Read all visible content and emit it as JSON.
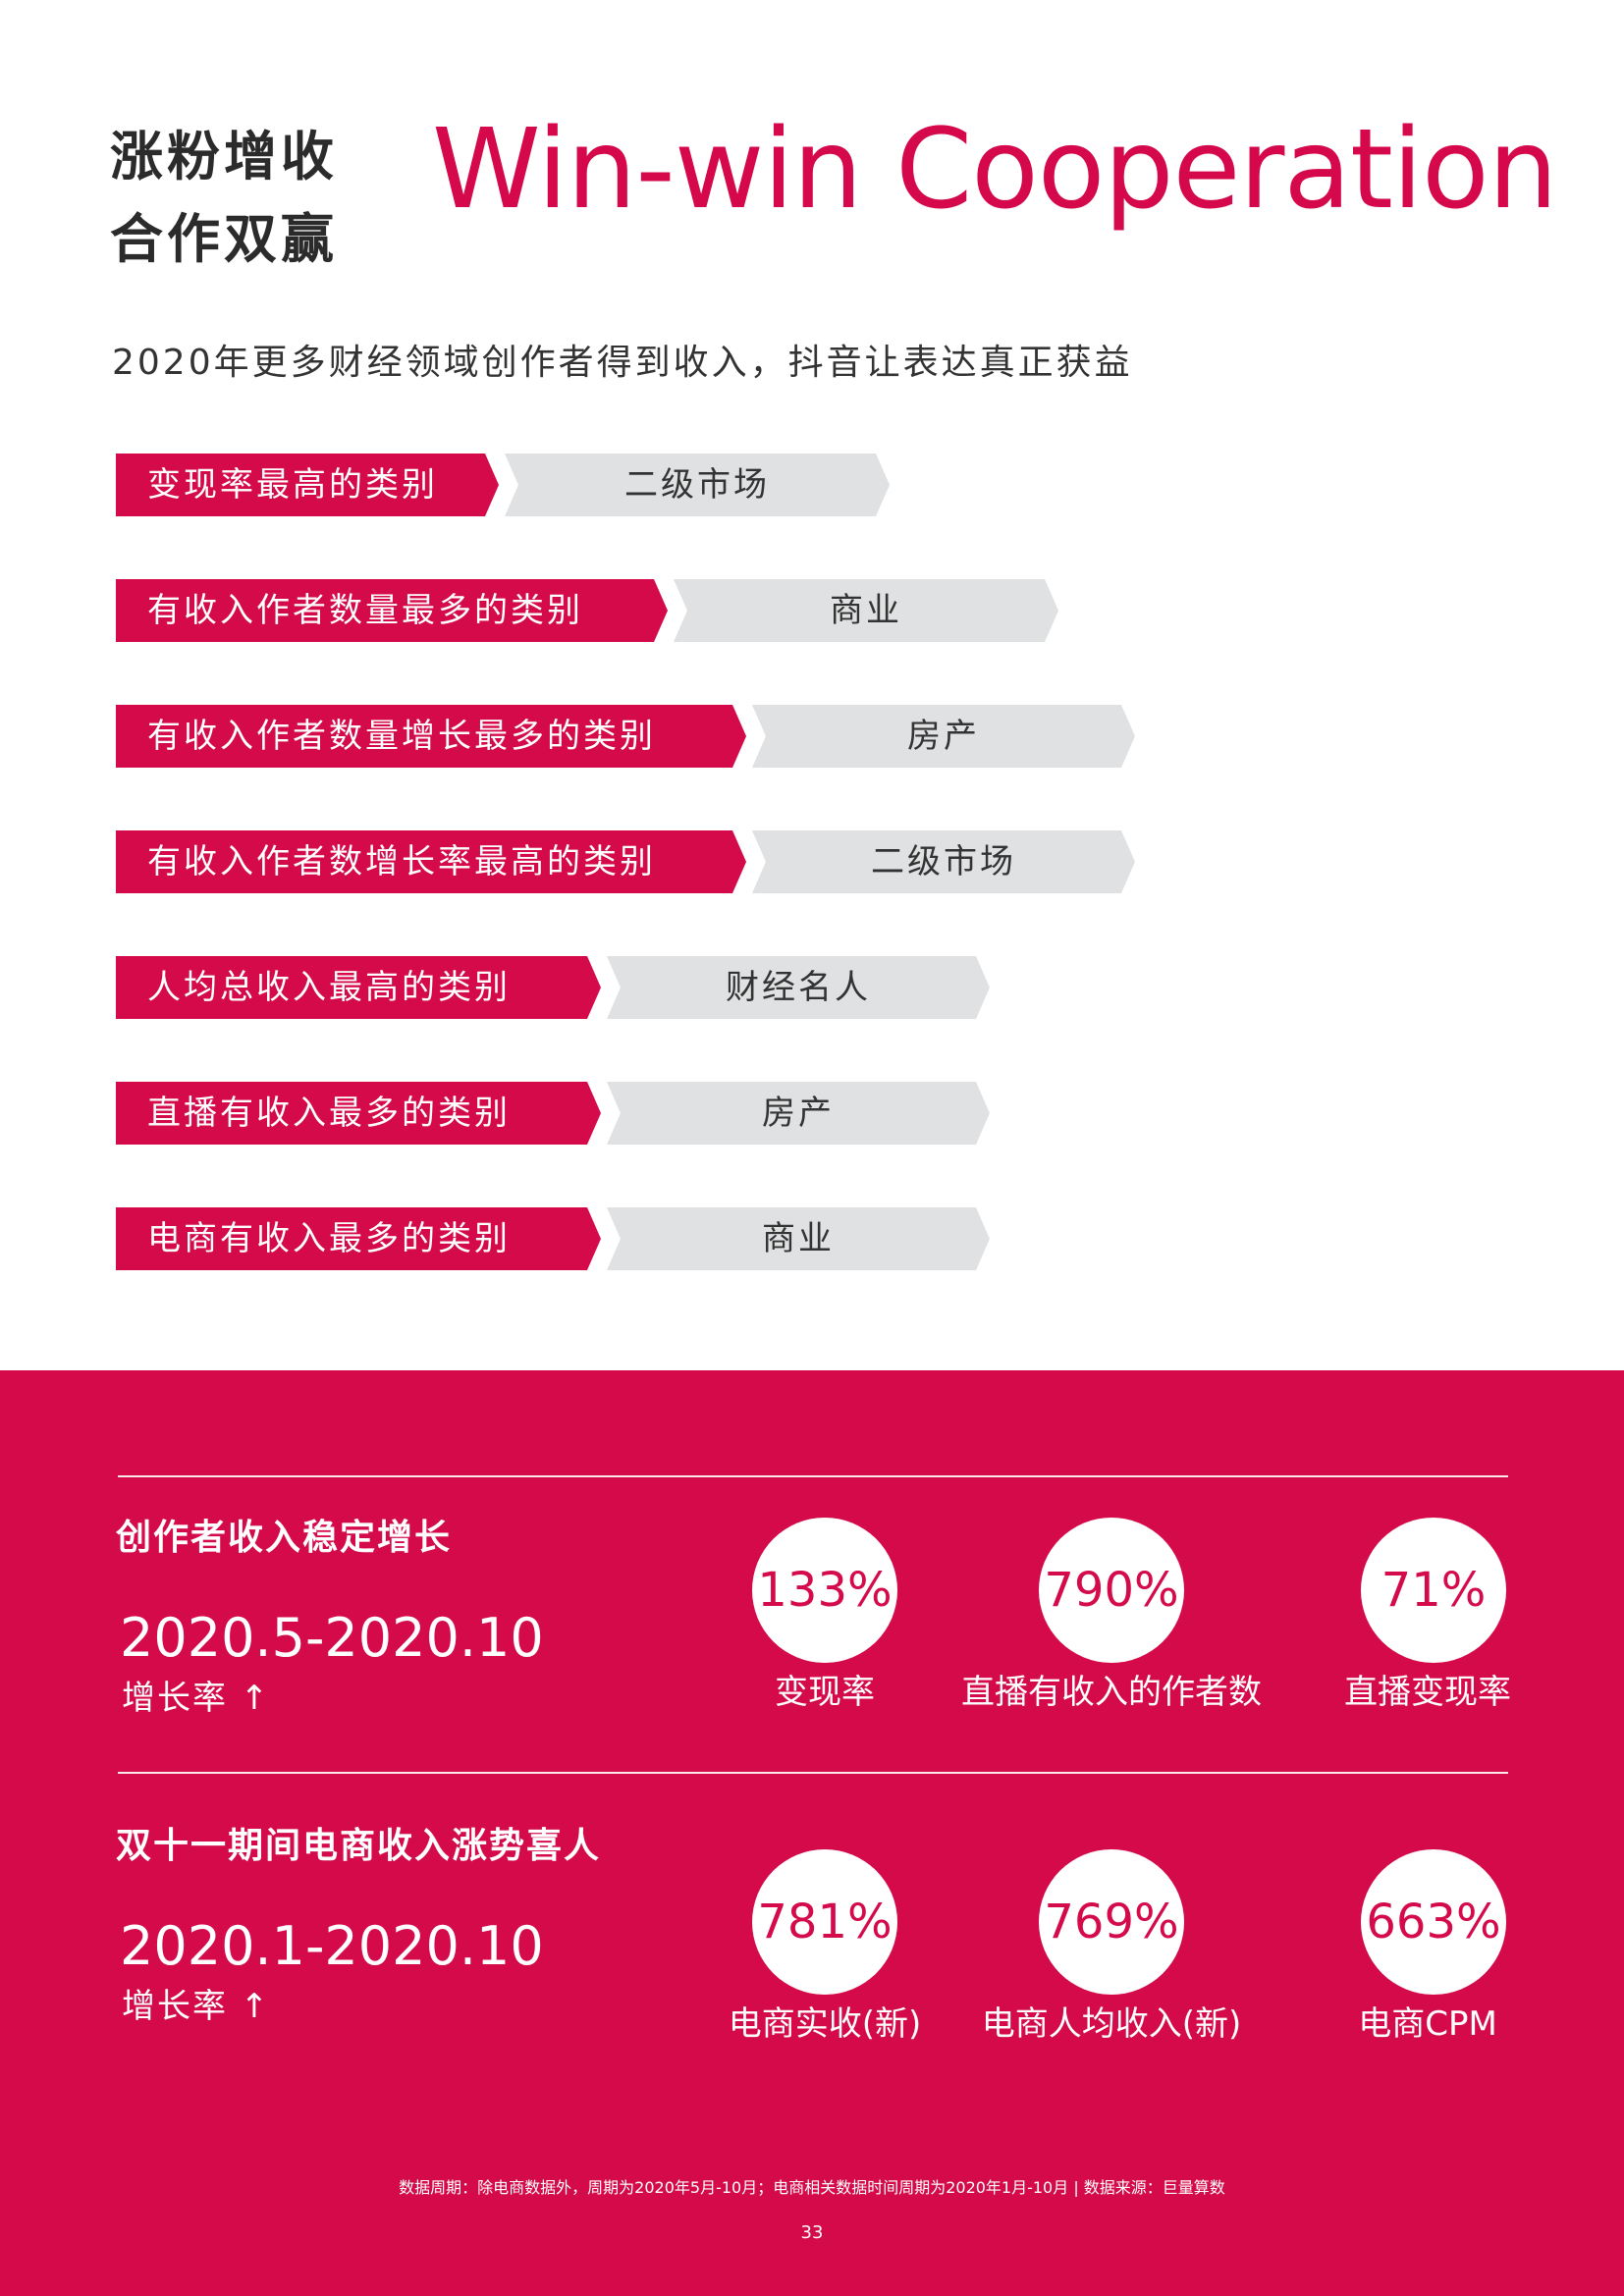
{
  "header": {
    "title_cn_line1": "涨粉增收",
    "title_cn_line2": "合作双赢",
    "title_en": "Win-win Cooperation",
    "subtitle": "2020年更多财经领域创作者得到收入，抖音让表达真正获益"
  },
  "categories": [
    {
      "label": "变现率最高的类别",
      "value": "二级市场"
    },
    {
      "label": "有收入作者数量最多的类别",
      "value": "商业"
    },
    {
      "label": "有收入作者数量增长最多的类别",
      "value": "房产"
    },
    {
      "label": "有收入作者数增长率最高的类别",
      "value": "二级市场"
    },
    {
      "label": "人均总收入最高的类别",
      "value": "财经名人"
    },
    {
      "label": "直播有收入最多的类别",
      "value": "房产"
    },
    {
      "label": "电商有收入最多的类别",
      "value": "商业"
    }
  ],
  "stats": [
    {
      "title": "创作者收入稳定增长",
      "period": "2020.5-2020.10",
      "growth_label": "增长率 ↑",
      "items": [
        {
          "value": "133%",
          "label": "变现率"
        },
        {
          "value": "790%",
          "label": "直播有收入的作者数"
        },
        {
          "value": "71%",
          "label": "直播变现率"
        }
      ]
    },
    {
      "title": "双十一期间电商收入涨势喜人",
      "period": "2020.1-2020.10",
      "growth_label": "增长率 ↑",
      "items": [
        {
          "value": "781%",
          "label": "电商实收(新)"
        },
        {
          "value": "769%",
          "label": "电商人均收入(新)"
        },
        {
          "value": "663%",
          "label": "电商CPM"
        }
      ]
    }
  ],
  "footer": {
    "note": "数据周期：除电商数据外，周期为2020年5月-10月；电商相关数据时间周期为2020年1月-10月 | 数据来源：巨量算数",
    "page_number": "33"
  },
  "colors": {
    "accent": "#d40a4b",
    "tag_gray": "#e0e1e2",
    "text_dark": "#2b2b2b"
  }
}
